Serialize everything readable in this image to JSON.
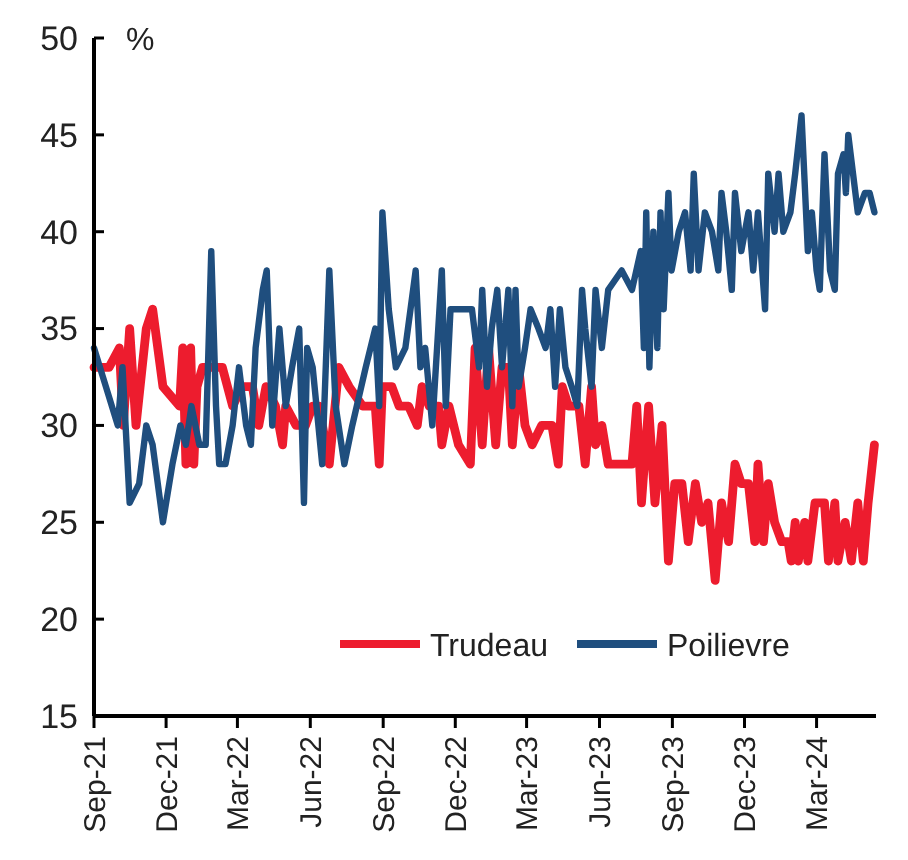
{
  "chart_data": {
    "type": "line",
    "ylabel": "%",
    "ylim": [
      15,
      50
    ],
    "yticks": [
      15,
      20,
      25,
      30,
      35,
      40,
      45,
      50
    ],
    "xlim": [
      "2021-09-01",
      "2024-05-15"
    ],
    "xticks": [
      {
        "value": "2021-09-01",
        "label": "Sep-21"
      },
      {
        "value": "2021-12-01",
        "label": "Dec-21"
      },
      {
        "value": "2022-03-01",
        "label": "Mar-22"
      },
      {
        "value": "2022-06-01",
        "label": "Jun-22"
      },
      {
        "value": "2022-09-01",
        "label": "Sep-22"
      },
      {
        "value": "2022-12-01",
        "label": "Dec-22"
      },
      {
        "value": "2023-03-01",
        "label": "Mar-23"
      },
      {
        "value": "2023-06-01",
        "label": "Jun-23"
      },
      {
        "value": "2023-09-01",
        "label": "Sep-23"
      },
      {
        "value": "2023-12-01",
        "label": "Dec-23"
      },
      {
        "value": "2024-03-01",
        "label": "Mar-24"
      }
    ],
    "grid": false,
    "legend": "bottom right",
    "line_style": "solid",
    "marker": "none",
    "series": [
      {
        "name": "Trudeau",
        "color": "#ed1c2e",
        "x": [
          "2021-09-01",
          "2021-09-20",
          "2021-10-03",
          "2021-10-08",
          "2021-10-16",
          "2021-10-24",
          "2021-11-06",
          "2021-11-14",
          "2021-11-27",
          "2021-12-18",
          "2021-12-22",
          "2021-12-26",
          "2022-01-01",
          "2022-01-05",
          "2022-01-09",
          "2022-01-16",
          "2022-01-29",
          "2022-02-10",
          "2022-02-23",
          "2022-03-07",
          "2022-03-20",
          "2022-03-28",
          "2022-04-06",
          "2022-04-18",
          "2022-04-27",
          "2022-05-01",
          "2022-05-14",
          "2022-05-26",
          "2022-06-04",
          "2022-06-12",
          "2022-06-25",
          "2022-07-07",
          "2022-07-20",
          "2022-08-06",
          "2022-08-22",
          "2022-08-27",
          "2022-08-31",
          "2022-09-12",
          "2022-09-21",
          "2022-10-03",
          "2022-10-14",
          "2022-10-20",
          "2022-10-29",
          "2022-11-10",
          "2022-11-14",
          "2022-11-23",
          "2022-12-05",
          "2022-12-20",
          "2022-12-26",
          "2023-01-04",
          "2023-01-12",
          "2023-01-21",
          "2023-01-29",
          "2023-02-06",
          "2023-02-11",
          "2023-02-19",
          "2023-02-27",
          "2023-03-08",
          "2023-03-20",
          "2023-04-02",
          "2023-04-10",
          "2023-04-15",
          "2023-04-23",
          "2023-05-06",
          "2023-05-14",
          "2023-05-22",
          "2023-05-27",
          "2023-06-04",
          "2023-06-12",
          "2023-07-12",
          "2023-07-18",
          "2023-07-24",
          "2023-08-02",
          "2023-08-10",
          "2023-08-19",
          "2023-08-27",
          "2023-09-04",
          "2023-09-13",
          "2023-09-21",
          "2023-09-30",
          "2023-10-08",
          "2023-10-16",
          "2023-10-25",
          "2023-11-02",
          "2023-11-11",
          "2023-11-19",
          "2023-11-27",
          "2023-12-06",
          "2023-12-14",
          "2023-12-18",
          "2023-12-25",
          "2023-12-31",
          "2024-01-08",
          "2024-01-17",
          "2024-01-25",
          "2024-01-29",
          "2024-02-03",
          "2024-02-07",
          "2024-02-15",
          "2024-02-19",
          "2024-02-28",
          "2024-03-11",
          "2024-03-16",
          "2024-03-24",
          "2024-03-28",
          "2024-04-06",
          "2024-04-14",
          "2024-04-22",
          "2024-04-29",
          "2024-05-05",
          "2024-05-13"
        ],
        "values": [
          33,
          33,
          34,
          30,
          35,
          30,
          35,
          36,
          32,
          31,
          34,
          28,
          34,
          28,
          32,
          33,
          33,
          33,
          31,
          32,
          32,
          30,
          32,
          31,
          29,
          31,
          30,
          30,
          31,
          31,
          28,
          33,
          32,
          31,
          31,
          28,
          32,
          32,
          31,
          31,
          30,
          32,
          31,
          31,
          29,
          31,
          29,
          28,
          34,
          29,
          34,
          29,
          33,
          33,
          29,
          33,
          30,
          29,
          30,
          30,
          28,
          32,
          31,
          31,
          28,
          32,
          29,
          30,
          28,
          28,
          31,
          26,
          31,
          26,
          30,
          23,
          27,
          27,
          24,
          27,
          25,
          26,
          22,
          26,
          24,
          28,
          27,
          27,
          24,
          28,
          24,
          27,
          25,
          24,
          24,
          23,
          25,
          23,
          25,
          23,
          26,
          26,
          23,
          26,
          23,
          25,
          23,
          26,
          23,
          26,
          29
        ]
      },
      {
        "name": "Poilievre",
        "color": "#1f4e7e",
        "x": [
          "2021-09-01",
          "2021-09-16",
          "2021-10-01",
          "2021-10-07",
          "2021-10-16",
          "2021-10-28",
          "2021-11-06",
          "2021-11-14",
          "2021-11-27",
          "2021-12-09",
          "2021-12-19",
          "2021-12-26",
          "2022-01-02",
          "2022-01-12",
          "2022-01-20",
          "2022-01-27",
          "2022-02-02",
          "2022-02-06",
          "2022-02-14",
          "2022-02-23",
          "2022-03-03",
          "2022-03-12",
          "2022-03-18",
          "2022-03-24",
          "2022-04-02",
          "2022-04-07",
          "2022-04-14",
          "2022-04-23",
          "2022-05-01",
          "2022-05-09",
          "2022-05-18",
          "2022-05-24",
          "2022-05-28",
          "2022-06-04",
          "2022-06-16",
          "2022-06-25",
          "2022-07-03",
          "2022-07-14",
          "2022-07-24",
          "2022-08-10",
          "2022-08-22",
          "2022-08-27",
          "2022-08-31",
          "2022-09-08",
          "2022-09-17",
          "2022-09-29",
          "2022-10-12",
          "2022-10-18",
          "2022-10-24",
          "2022-11-02",
          "2022-11-14",
          "2022-11-19",
          "2022-11-25",
          "2022-12-14",
          "2022-12-22",
          "2022-12-31",
          "2023-01-04",
          "2023-01-10",
          "2023-01-16",
          "2023-01-23",
          "2023-01-29",
          "2023-02-06",
          "2023-02-11",
          "2023-02-15",
          "2023-02-19",
          "2023-02-27",
          "2023-03-06",
          "2023-03-16",
          "2023-03-25",
          "2023-03-31",
          "2023-04-06",
          "2023-04-12",
          "2023-04-19",
          "2023-04-27",
          "2023-05-04",
          "2023-05-10",
          "2023-05-14",
          "2023-05-22",
          "2023-05-27",
          "2023-06-04",
          "2023-06-12",
          "2023-06-29",
          "2023-07-12",
          "2023-07-23",
          "2023-07-27",
          "2023-07-30",
          "2023-08-03",
          "2023-08-08",
          "2023-08-13",
          "2023-08-17",
          "2023-08-21",
          "2023-08-27",
          "2023-08-31",
          "2023-09-09",
          "2023-09-17",
          "2023-09-24",
          "2023-09-28",
          "2023-10-04",
          "2023-10-12",
          "2023-10-21",
          "2023-10-29",
          "2023-11-02",
          "2023-11-08",
          "2023-11-15",
          "2023-11-19",
          "2023-11-27",
          "2023-12-06",
          "2023-12-12",
          "2023-12-18",
          "2023-12-27",
          "2023-12-31",
          "2024-01-08",
          "2024-01-13",
          "2024-01-19",
          "2024-01-28",
          "2024-02-03",
          "2024-02-11",
          "2024-02-19",
          "2024-02-24",
          "2024-03-01",
          "2024-03-05",
          "2024-03-11",
          "2024-03-18",
          "2024-03-24",
          "2024-03-28",
          "2024-04-04",
          "2024-04-07",
          "2024-04-10",
          "2024-04-16",
          "2024-04-22",
          "2024-05-01",
          "2024-05-07",
          "2024-05-13"
        ],
        "values": [
          34,
          32,
          30,
          33,
          26,
          27,
          30,
          29,
          25,
          28,
          30,
          29,
          31,
          29,
          29,
          39,
          31,
          28,
          28,
          30,
          33,
          30,
          29,
          34,
          37,
          38,
          30,
          35,
          31,
          33,
          35,
          26,
          34,
          33,
          28,
          38,
          31,
          28,
          30,
          33,
          35,
          31,
          41,
          36,
          33,
          34,
          38,
          33,
          34,
          30,
          38,
          31,
          36,
          36,
          36,
          33,
          37,
          32,
          35,
          37,
          33,
          37,
          31,
          37,
          32,
          34,
          36,
          35,
          34,
          36,
          32,
          36,
          33,
          32,
          31,
          37,
          35,
          32,
          37,
          34,
          37,
          38,
          37,
          39,
          34,
          41,
          33,
          40,
          34,
          41,
          36,
          42,
          38,
          40,
          41,
          38,
          43,
          38,
          41,
          40,
          38,
          42,
          40,
          37,
          42,
          39,
          41,
          38,
          41,
          36,
          43,
          40,
          43,
          40,
          41,
          43,
          46,
          39,
          41,
          38,
          37,
          44,
          38,
          37,
          43,
          44,
          42,
          45,
          43,
          41,
          42,
          42,
          41
        ]
      }
    ]
  }
}
